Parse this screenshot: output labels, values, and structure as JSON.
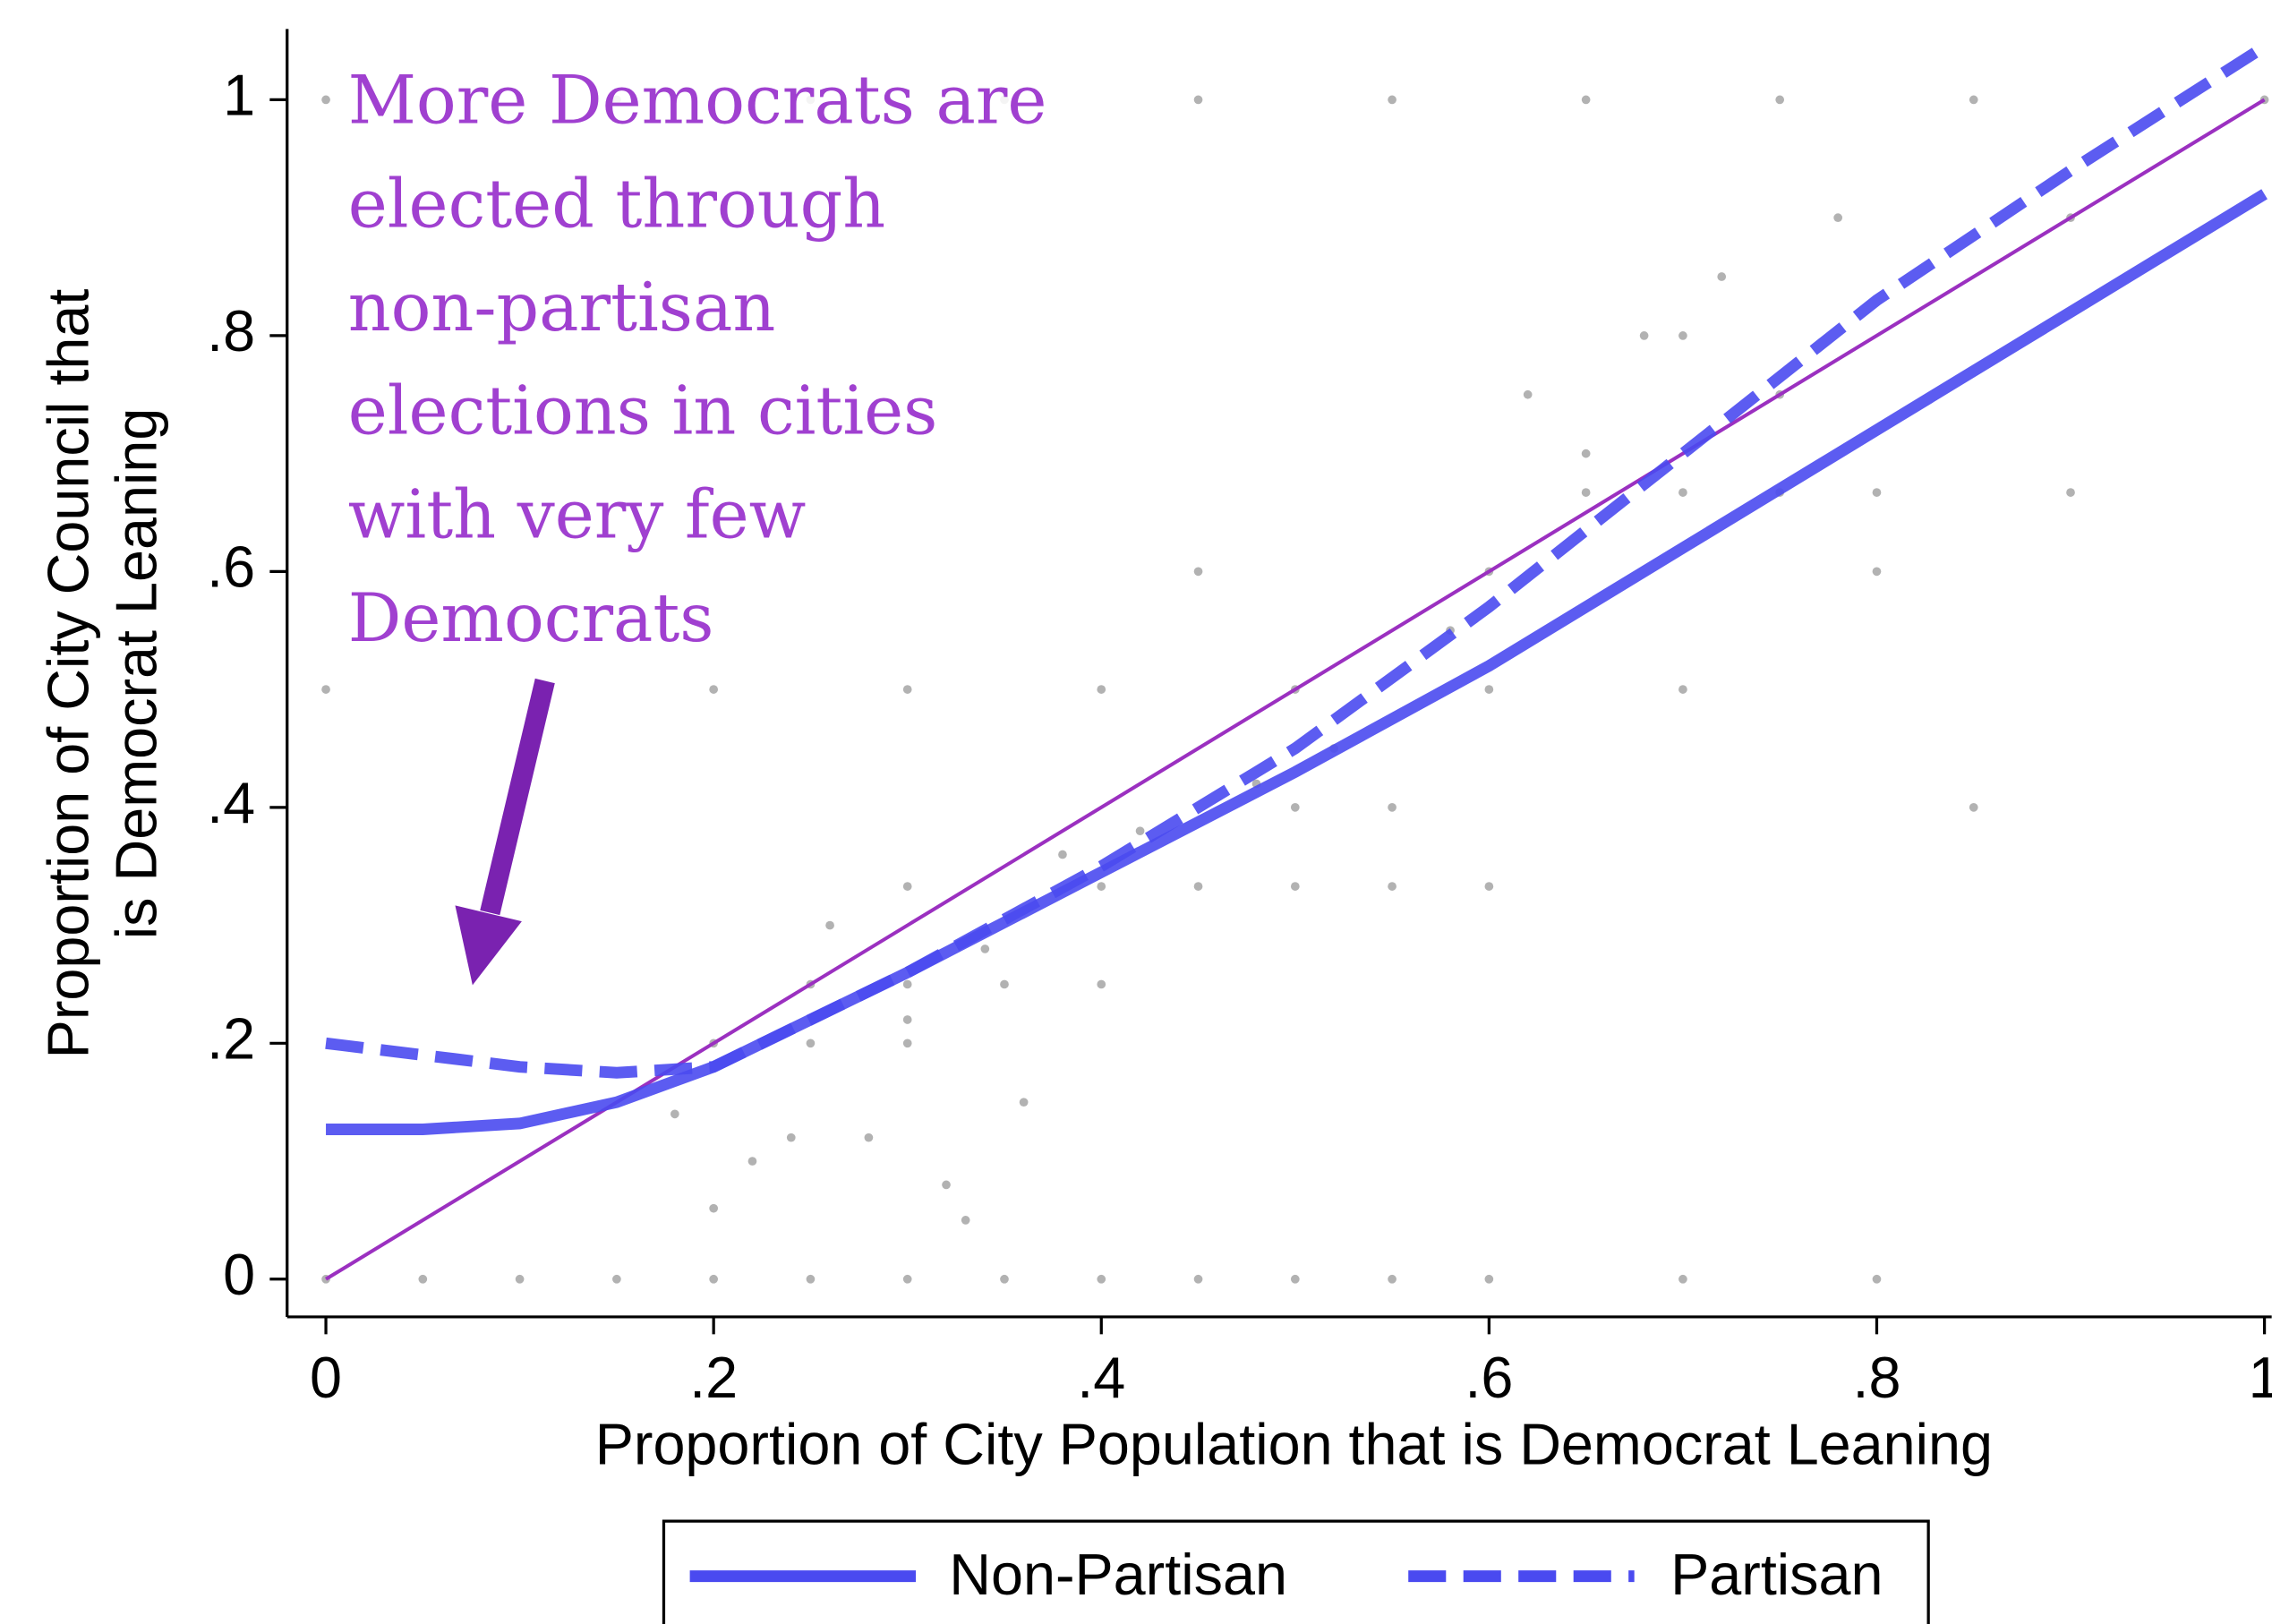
{
  "chart_data": {
    "type": "scatter",
    "xlabel": "Proportion of City Population that is Democrat Leaning",
    "ylabel": [
      "Proportion of City Council that",
      "is Democrat Leaning"
    ],
    "xlim": [
      -0.02,
      1.0
    ],
    "ylim": [
      -0.032,
      1.06
    ],
    "xticks": [
      0,
      {
        "value": 0.2,
        "label": ".2"
      },
      {
        "value": 0.4,
        "label": ".4"
      },
      {
        "value": 0.6,
        "label": ".6"
      },
      {
        "value": 0.8,
        "label": ".8"
      },
      1
    ],
    "yticks": [
      0,
      {
        "value": 0.2,
        "label": ".2"
      },
      {
        "value": 0.4,
        "label": ".4"
      },
      {
        "value": 0.6,
        "label": ".6"
      },
      {
        "value": 0.8,
        "label": ".8"
      },
      1
    ],
    "points": {
      "color": "#000000",
      "opacity": 0.3,
      "x": [
        0.0,
        0.05,
        0.1,
        0.15,
        0.2,
        0.25,
        0.3,
        0.35,
        0.4,
        0.45,
        0.5,
        0.55,
        0.6,
        0.7,
        0.8,
        0.0,
        0.15,
        0.25,
        0.35,
        0.45,
        0.55,
        0.65,
        0.75,
        0.85,
        0.0,
        0.2,
        0.3,
        0.4,
        0.5,
        0.6,
        0.7,
        0.3,
        0.4,
        0.45,
        0.5,
        0.55,
        0.6,
        0.65,
        0.7,
        0.75,
        0.8,
        0.9,
        1.0,
        0.45,
        0.6,
        0.25,
        0.3,
        0.35,
        0.4,
        0.2,
        0.25,
        0.3,
        0.22,
        0.28,
        0.32,
        0.36,
        0.18,
        0.2,
        0.26,
        0.5,
        0.55,
        0.62,
        0.68,
        0.72,
        0.78,
        0.65,
        0.58,
        0.52,
        0.48,
        0.42,
        0.38,
        0.34,
        0.3,
        0.24,
        0.33,
        0.7,
        0.75,
        0.8,
        0.85,
        0.9
      ],
      "y": [
        0,
        0,
        0,
        0,
        0,
        0,
        0,
        0,
        0,
        0,
        0,
        0,
        0,
        0,
        0,
        1,
        1,
        1,
        1,
        1,
        1,
        1,
        1,
        1,
        0.5,
        0.5,
        0.5,
        0.5,
        0.5,
        0.5,
        0.5,
        0.333,
        0.333,
        0.333,
        0.333,
        0.333,
        0.333,
        0.667,
        0.667,
        0.667,
        0.667,
        0.667,
        1,
        0.6,
        0.6,
        0.25,
        0.25,
        0.25,
        0.25,
        0.2,
        0.2,
        0.2,
        0.1,
        0.12,
        0.08,
        0.15,
        0.14,
        0.06,
        0.3,
        0.4,
        0.4,
        0.75,
        0.8,
        0.85,
        0.9,
        0.7,
        0.55,
        0.45,
        0.42,
        0.38,
        0.36,
        0.28,
        0.22,
        0.12,
        0.05,
        0.8,
        0.75,
        0.6,
        0.4,
        0.9
      ]
    },
    "series": [
      {
        "name": "Non-Partisan",
        "color": "#4a4af0",
        "dashed": false,
        "x": [
          0,
          0.05,
          0.1,
          0.15,
          0.2,
          0.3,
          0.4,
          0.5,
          0.6,
          0.7,
          0.8,
          0.9,
          1.0
        ],
        "y": [
          0.127,
          0.127,
          0.132,
          0.15,
          0.18,
          0.26,
          0.345,
          0.43,
          0.52,
          0.62,
          0.72,
          0.82,
          0.92
        ]
      },
      {
        "name": "Partisan",
        "color": "#4a4af0",
        "dashed": true,
        "x": [
          0,
          0.05,
          0.1,
          0.15,
          0.2,
          0.3,
          0.4,
          0.5,
          0.6,
          0.7,
          0.8,
          0.9,
          1.0
        ],
        "y": [
          0.2,
          0.19,
          0.18,
          0.175,
          0.18,
          0.26,
          0.35,
          0.45,
          0.57,
          0.7,
          0.83,
          0.94,
          1.045
        ]
      }
    ],
    "reference_line": {
      "color": "#9b30c0",
      "x": [
        0,
        1
      ],
      "y": [
        0,
        1
      ]
    },
    "annotation": [
      "More Democrats are",
      "elected through",
      "non-partisan",
      "elections in cities",
      "with very few",
      "Democrats"
    ],
    "legend": "bottom"
  }
}
